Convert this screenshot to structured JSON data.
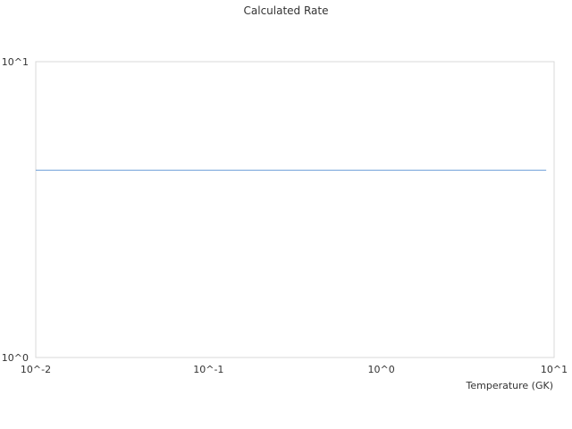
{
  "chart_data": {
    "type": "line",
    "title": "Calculated Rate",
    "xlabel": "Temperature (GK)",
    "ylabel": "",
    "xscale": "log",
    "yscale": "log",
    "xlim": [
      0.01,
      10
    ],
    "ylim": [
      1,
      10
    ],
    "xticks": [
      {
        "value": 0.01,
        "label": "10^-2"
      },
      {
        "value": 0.1,
        "label": "10^-1"
      },
      {
        "value": 1,
        "label": "10^0"
      },
      {
        "value": 10,
        "label": "10^1"
      }
    ],
    "yticks": [
      {
        "value": 1,
        "label": "10^0"
      },
      {
        "value": 10,
        "label": "10^1"
      }
    ],
    "grid": false,
    "series": [
      {
        "color": "#6f9fd8",
        "x": [
          0.01,
          9.0
        ],
        "y": [
          4.3,
          4.3
        ]
      }
    ]
  }
}
